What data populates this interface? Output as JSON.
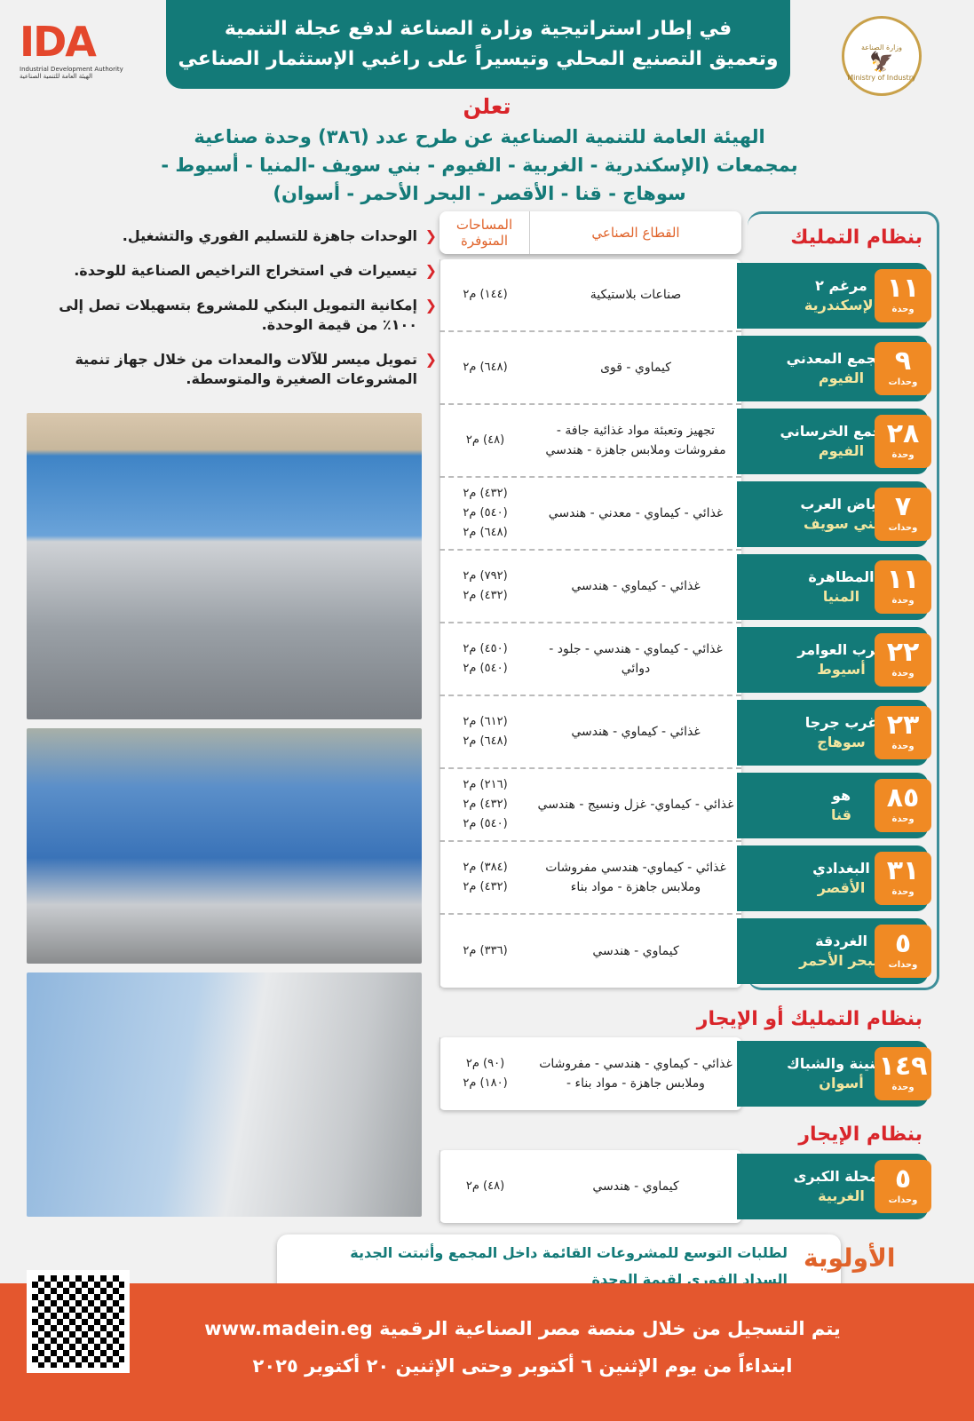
{
  "header": {
    "line1": "في إطار استراتيجية وزارة الصناعة لدفع عجلة التنمية",
    "line2": "وتعميق التصنيع المحلي وتيسيراً على راغبي الإستثمار الصناعي"
  },
  "ida_logo": {
    "mark": "IDA",
    "en": "Industrial Development Authority",
    "ar": "الهيئة العامة للتنمية الصناعية"
  },
  "ministry_seal": {
    "ar": "وزارة الصناعة",
    "en": "Ministry of Industry"
  },
  "announce": "تعلن",
  "title": {
    "line1": "الهيئة العامة للتنمية الصناعية عن طرح عدد (٣٨٦) وحدة صناعية",
    "line2": "بمجمعات (الإسكندرية - الغربية - الفيوم - بني سويف -المنيا - أسيوط -",
    "line3": "سوهاج - قنا - الأقصر - البحر الأحمر - أسوان)"
  },
  "benefits": [
    "الوحدات جاهزة للتسليم الفوري والتشغيل.",
    "تيسيرات في استخراج التراخيص الصناعية للوحدة.",
    "إمكانية التمويل البنكي للمشروع بتسهيلات تصل إلى ١٠٠٪ من قيمة الوحدة.",
    "تمويل ميسر للآلات والمعدات من خلال جهاز تنمية المشروعات الصغيرة والمتوسطة."
  ],
  "table_header": {
    "area": "المساحات المتوفرة",
    "sector": "القطاع الصناعي"
  },
  "sections": {
    "ownership": "بنظام التمليك",
    "own_or_rent": "بنظام التمليك أو الإيجار",
    "rent": "بنظام الإيجار"
  },
  "ownership_rows": [
    {
      "count": "١١",
      "unit": "وحدة",
      "name": "مرغم ٢",
      "gov": "الإسكندرية",
      "areas": [
        "(١٤٤) م٢"
      ],
      "sector": "صناعات بلاستيكية"
    },
    {
      "count": "٩",
      "unit": "وحدات",
      "name": "المجمع المعدني",
      "gov": "الفيوم",
      "areas": [
        "(٦٤٨) م٢"
      ],
      "sector": "كيماوي - قوى"
    },
    {
      "count": "٢٨",
      "unit": "وحدة",
      "name": "المجمع الخرساني",
      "gov": "الفيوم",
      "areas": [
        "(٤٨) م٢"
      ],
      "sector": "تجهيز وتعبئة مواد غذائية جافة - مفروشات وملابس جاهزة - هندسي"
    },
    {
      "count": "٧",
      "unit": "وحدات",
      "name": "بياض العرب",
      "gov": "بني سويف",
      "areas": [
        "(٤٣٢) م٢",
        "(٥٤٠) م٢",
        "(٦٤٨) م٢"
      ],
      "sector": "غذائي - كيماوي - معدني - هندسي"
    },
    {
      "count": "١١",
      "unit": "وحدة",
      "name": "المطاهرة",
      "gov": "المنيا",
      "areas": [
        "(٧٩٢) م٢",
        "(٤٣٢) م٢"
      ],
      "sector": "غذائي - كيماوي - هندسي"
    },
    {
      "count": "٢٢",
      "unit": "وحدة",
      "name": "عرب العوامر",
      "gov": "أسيوط",
      "areas": [
        "(٤٥٠) م٢",
        "(٥٤٠) م٢"
      ],
      "sector": "غذائي - كيماوي - هندسي - جلود - دوائي"
    },
    {
      "count": "٢٣",
      "unit": "وحدة",
      "name": "غرب جرجا",
      "gov": "سوهاج",
      "areas": [
        "(٦١٢) م٢",
        "(٦٤٨) م٢"
      ],
      "sector": "غذائي - كيماوي - هندسي"
    },
    {
      "count": "٨٥",
      "unit": "وحدة",
      "name": "هو",
      "gov": "قنا",
      "areas": [
        "(٢١٦) م٢",
        "(٤٣٢) م٢",
        "(٥٤٠) م٢"
      ],
      "sector": "غذائي - كيماوي- غزل ونسيج - هندسي"
    },
    {
      "count": "٣١",
      "unit": "وحدة",
      "name": "البغدادي",
      "gov": "الأقصر",
      "areas": [
        "(٣٨٤) م٢",
        "(٤٣٢) م٢"
      ],
      "sector": "غذائي - كيماوي- هندسي مفروشات وملابس جاهزة - مواد بناء"
    },
    {
      "count": "٥",
      "unit": "وحدات",
      "name": "الغردقة",
      "gov": "البحر الأحمر",
      "areas": [
        "(٣٣٦) م٢"
      ],
      "sector": "كيماوي - هندسي"
    }
  ],
  "own_rent_row": {
    "count": "١٤٩",
    "unit": "وحدة",
    "name": "الجنينة والشباك",
    "gov": "أسوان",
    "areas": [
      "(٩٠) م٢",
      "(١٨٠) م٢"
    ],
    "sector": "غذائي - كيماوي - هندسي - مفروشات وملابس جاهزة - مواد بناء -"
  },
  "rent_row": {
    "count": "٥",
    "unit": "وحدات",
    "name": "المحلة الكبرى",
    "gov": "الغربية",
    "areas": [
      "(٤٨) م٢"
    ],
    "sector": "كيماوي - هندسي"
  },
  "priority": {
    "label": "الأولوية",
    "items": [
      "لطلبات التوسع للمشروعات القائمة داخل المجمع وأثبتت الجدية",
      "السداد الفوري لقيمة الوحدة"
    ]
  },
  "footer": {
    "line1": "يتم التسجيل من خلال منصة مصر الصناعية الرقمية www.madein.eg",
    "line2": "ابتداءاً من يوم الإثنين ٦ أكتوبر وحتى الإثنين ٢٠ أكتوبر ٢٠٢٥"
  },
  "colors": {
    "teal": "#137a78",
    "orange": "#f08a24",
    "red": "#d9252a",
    "footer": "#e4572e"
  }
}
